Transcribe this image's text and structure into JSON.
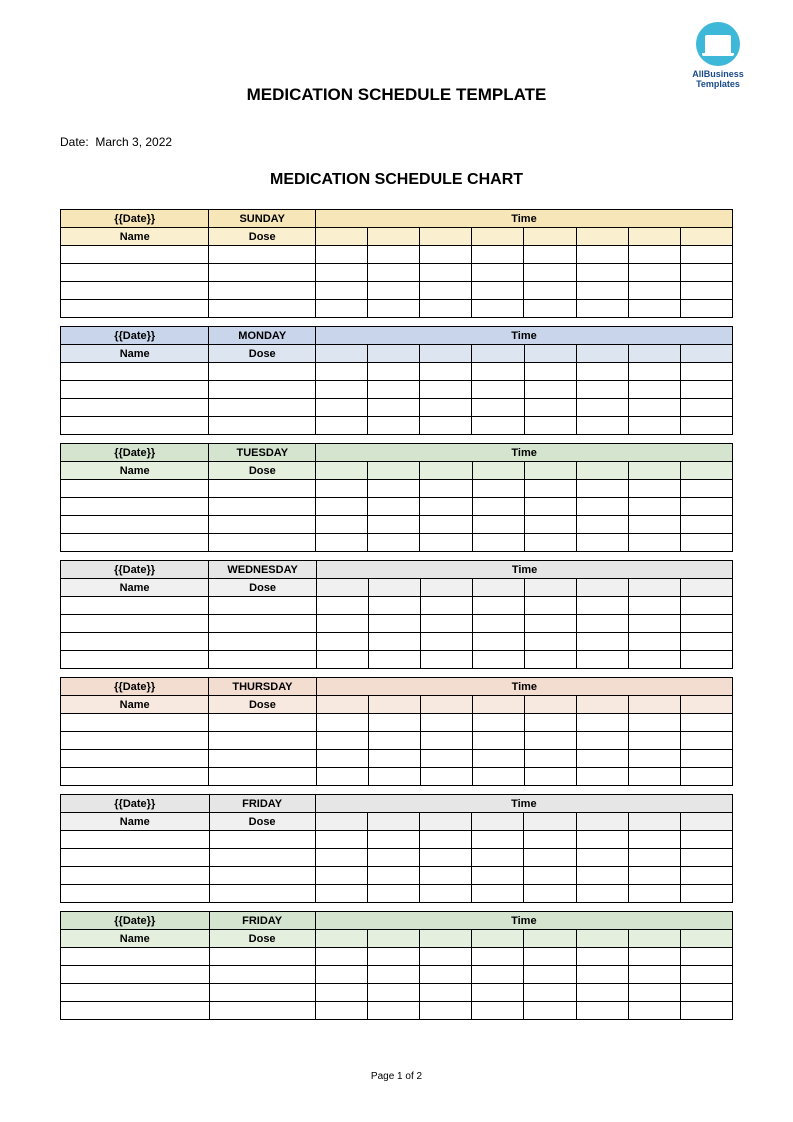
{
  "logo": {
    "line1": "AllBusiness",
    "line2": "Templates"
  },
  "title": "MEDICATION SCHEDULE TEMPLATE",
  "date_label": "Date:",
  "date_value": "March 3, 2022",
  "subtitle": "MEDICATION SCHEDULE  CHART",
  "headers": {
    "date_placeholder": "{{Date}}",
    "name": "Name",
    "dose": "Dose",
    "time": "Time"
  },
  "days": [
    {
      "day": "SUNDAY",
      "header_bg": "#f7e6b8",
      "sub_bg": "#faf0cf"
    },
    {
      "day": "MONDAY",
      "header_bg": "#c8d5ea",
      "sub_bg": "#dde5f1"
    },
    {
      "day": "TUESDAY",
      "header_bg": "#d4e4cf",
      "sub_bg": "#e5efde"
    },
    {
      "day": "WEDNESDAY",
      "header_bg": "#e6e6e6",
      "sub_bg": "#f0f0f0"
    },
    {
      "day": "THURSDAY",
      "header_bg": "#f3dcd0",
      "sub_bg": "#f8e9e0"
    },
    {
      "day": "FRIDAY",
      "header_bg": "#e6e6e6",
      "sub_bg": "#f0f0f0"
    },
    {
      "day": "FRIDAY",
      "header_bg": "#d4e4cf",
      "sub_bg": "#e5efde"
    }
  ],
  "data_rows_per_day": 4,
  "time_columns": 8,
  "footer": "Page 1 of 2",
  "colors": {
    "border": "#000000",
    "page_bg": "#ffffff",
    "logo_circle": "#3eb8d8",
    "logo_text": "#1a4a8a"
  },
  "fonts": {
    "title_size_pt": 17,
    "subtitle_size_pt": 16,
    "body_size_pt": 11,
    "date_size_pt": 12,
    "footer_size_pt": 10
  }
}
